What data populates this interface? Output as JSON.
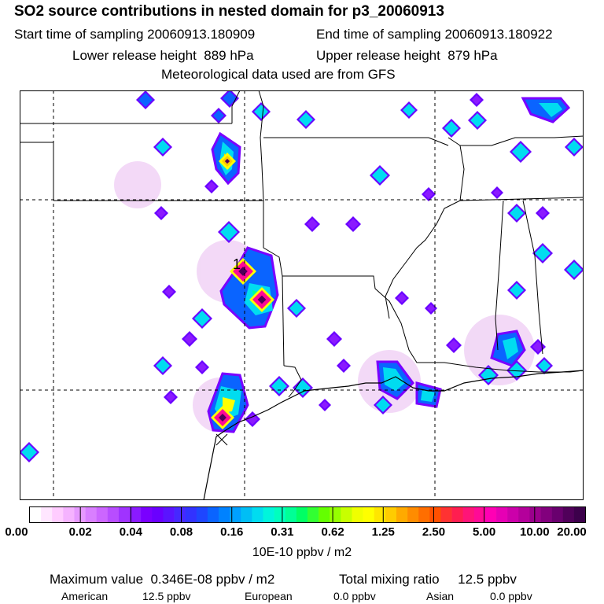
{
  "header": {
    "title": "SO2 source contributions in nested domain for p3_20060913",
    "start_sampling": "Start time of sampling 20060913.180909",
    "end_sampling": "End time of sampling 20060913.180922",
    "lower_release": "Lower release height  889 hPa",
    "upper_release": "Upper release height  879 hPa",
    "met_source": "Meteorological data used are from GFS"
  },
  "map": {
    "source_marker_label": "1"
  },
  "colorbar": {
    "colors": [
      "#ffffff",
      "#ffe6ff",
      "#ffccff",
      "#f5b3ff",
      "#e699ff",
      "#d97fff",
      "#cc66ff",
      "#b84dff",
      "#a033ff",
      "#8a1aff",
      "#7a00ff",
      "#6a00ff",
      "#5a14ff",
      "#4628ff",
      "#3232ff",
      "#1e46ff",
      "#0a64ff",
      "#0082ff",
      "#00a0ff",
      "#00bef5",
      "#00dcf0",
      "#00f5dc",
      "#00ffbe",
      "#00ff96",
      "#00ff64",
      "#32ff32",
      "#64ff00",
      "#96ff00",
      "#c8ff00",
      "#f0ff00",
      "#ffff00",
      "#ffe600",
      "#ffcc00",
      "#ffaa00",
      "#ff8c00",
      "#ff6e00",
      "#ff5000",
      "#ff3232",
      "#ff1e50",
      "#ff1478",
      "#ff0a96",
      "#ff00b4",
      "#e600b4",
      "#cc00aa",
      "#b4009b",
      "#9b008c",
      "#82007d",
      "#69006e",
      "#50005a",
      "#3c004b"
    ],
    "tick_labels": [
      "0.00",
      "0.02",
      "0.04",
      "0.08",
      "0.16",
      "0.31",
      "0.62",
      "1.25",
      "2.50",
      "5.00",
      "10.00",
      "20.00"
    ],
    "units": "10E-10 ppbv / m2"
  },
  "footer": {
    "max_value": "Maximum value  0.346E-08 ppbv / m2",
    "total_mixing": "Total mixing ratio     12.5 ppbv",
    "american_label": "American",
    "american_value": "12.5 ppbv",
    "european_label": "European",
    "european_value": "0.0 ppbv",
    "asian_label": "Asian",
    "asian_value": "0.0 ppbv"
  }
}
